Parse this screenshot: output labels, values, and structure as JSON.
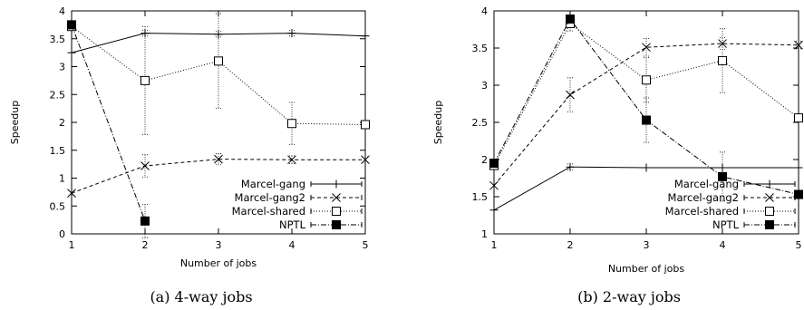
{
  "chart_data": [
    {
      "type": "line",
      "caption": "(a) 4-way jobs",
      "xlabel": "Number of jobs",
      "ylabel": "Speedup",
      "x": [
        1,
        2,
        3,
        4,
        5
      ],
      "xlim": [
        1,
        5
      ],
      "ylim": [
        0,
        4
      ],
      "xticks": [
        "1",
        "2",
        "3",
        "4",
        "5"
      ],
      "yticks": [
        "0",
        "0.5",
        "1",
        "1.5",
        "2",
        "2.5",
        "3",
        "3.5",
        "4"
      ],
      "legend_position": "bottom-right",
      "series": [
        {
          "name": "Marcel-gang",
          "marker": "plus",
          "dash": "solid",
          "values": [
            3.25,
            3.6,
            3.58,
            3.6,
            3.55
          ],
          "errors": [
            0,
            0.05,
            0.05,
            0.05,
            0
          ]
        },
        {
          "name": "Marcel-gang2",
          "marker": "cross",
          "dash": "4,3",
          "values": [
            0.73,
            1.22,
            1.34,
            1.33,
            1.33
          ],
          "errors": [
            0,
            0.2,
            0.1,
            0.07,
            0.05
          ]
        },
        {
          "name": "Marcel-shared",
          "marker": "square-open",
          "dash": "1,2",
          "values": [
            3.72,
            2.75,
            3.1,
            1.98,
            1.96
          ],
          "errors": [
            0,
            0.97,
            0.85,
            0.38,
            0
          ]
        },
        {
          "name": "NPTL",
          "marker": "square-filled",
          "dash": "6,2,1,2",
          "values": [
            3.75,
            0.23,
            null,
            null,
            null
          ],
          "errors": [
            0,
            0.3,
            0,
            0,
            0
          ]
        }
      ]
    },
    {
      "type": "line",
      "caption": "(b) 2-way jobs",
      "xlabel": "Number of jobs",
      "ylabel": "Speedup",
      "x": [
        1,
        2,
        3,
        4,
        5
      ],
      "xlim": [
        1,
        5
      ],
      "ylim": [
        1,
        4
      ],
      "xticks": [
        "1",
        "2",
        "3",
        "4",
        "5"
      ],
      "yticks": [
        "1",
        "1.5",
        "2",
        "2.5",
        "3",
        "3.5",
        "4"
      ],
      "legend_position": "bottom-right",
      "series": [
        {
          "name": "Marcel-gang",
          "marker": "plus",
          "dash": "solid",
          "values": [
            1.32,
            1.9,
            1.89,
            1.89,
            1.89
          ],
          "errors": [
            0,
            0.04,
            0,
            0,
            0
          ]
        },
        {
          "name": "Marcel-gang2",
          "marker": "cross",
          "dash": "4,3",
          "values": [
            1.65,
            2.87,
            3.51,
            3.56,
            3.54
          ],
          "errors": [
            0,
            0.23,
            0.12,
            0.08,
            0.05
          ]
        },
        {
          "name": "Marcel-shared",
          "marker": "square-open",
          "dash": "1,2",
          "values": [
            1.92,
            3.83,
            3.07,
            3.33,
            2.56
          ],
          "errors": [
            0,
            0.1,
            0.3,
            0.43,
            0
          ]
        },
        {
          "name": "NPTL",
          "marker": "square-filled",
          "dash": "6,2,1,2",
          "values": [
            1.95,
            3.89,
            2.53,
            1.77,
            1.53
          ],
          "errors": [
            0,
            0.05,
            0.3,
            0.33,
            0
          ]
        }
      ]
    }
  ]
}
